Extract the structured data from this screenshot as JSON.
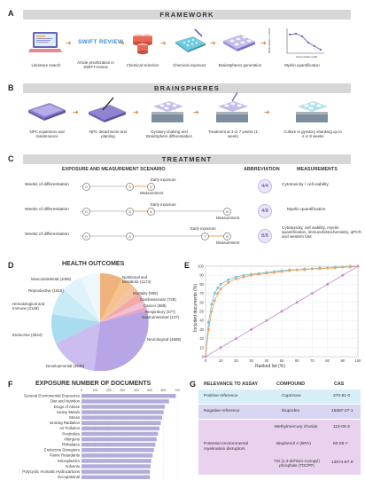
{
  "colors": {
    "purple": "#9b8fd6",
    "orange": "#f0a35e",
    "cyan": "#6fc9e0",
    "grey_bar": "#d7d7d7"
  },
  "panelA": {
    "letter": "A",
    "title": "FRAMEWORK",
    "swift_logo": "SWIFT REVIEW",
    "steps": [
      "Literature search",
      "Article prioritization in SWIFT-review",
      "Chemical selection",
      "Chemical exposure",
      "BrainSpheres generation",
      "Myelin quantification"
    ],
    "mini_chart": {
      "ylabel": "Myelin relative to control",
      "xlabel": "Concentration (µM)"
    }
  },
  "panelB": {
    "letter": "B",
    "title": "BRAINSPHERES",
    "steps": [
      "NPC expansion and maintenance",
      "NPC detachment and planting",
      "Gyratory shaking and BrainSphere differentiation",
      "Treatment at 3 or 7 weeks (1 week)",
      "Culture in gyratory shanking up to 4 or 8 weeks"
    ]
  },
  "panelC": {
    "letter": "C",
    "title": "TREATMENT",
    "headers": {
      "scenario": "EXPOSURE AND MEASUREMENT SCENARIO",
      "abbreviation": "ABBREVIATION",
      "measurements": "MEASUREMENTS"
    },
    "rows": [
      {
        "label": "Weeks of differentiation",
        "points": [
          "0",
          "3",
          "4"
        ],
        "early": "Early exposure",
        "measure": "Measurement",
        "abbr": "4/4",
        "meas": "Cytotoxicity / cell viability"
      },
      {
        "label": "Weeks of differentiation",
        "points": [
          "0",
          "3",
          "4",
          "8"
        ],
        "early": "Early exposure",
        "measure": "Measurement",
        "abbr": "4/8",
        "meas": "Myelin quantification"
      },
      {
        "label": "Weeks of differentiation",
        "points": [
          "0",
          "3",
          "7",
          "8"
        ],
        "early": "Early exposure",
        "measure": "Measurement",
        "abbr": "8/8",
        "meas": "Cytotoxicity, cell viability, myelin quantification, immunohistochemistry, qPCR and western blot"
      }
    ]
  },
  "panelD": {
    "letter": "D",
    "title": "HEALTH OUTCOMES",
    "labels": [
      "Musculoskeletal (1069)",
      "Reproductive (1615)",
      "Hematological and Immune (2149)",
      "Endocrine (2844)",
      "Developmental (3539)",
      "Nutritional and Metabolic (1174)",
      "Mortality (808)",
      "Cardiovascular (728)",
      "Cancer (688)",
      "Respiratory (377)",
      "Gastrointestinal (137)",
      "Neurological (4659)"
    ]
  },
  "chart_data": {
    "type": "line",
    "panel_letter": "E",
    "xlabel": "Ranked list (%)",
    "ylabel": "Included documents (%)",
    "xlim": [
      0,
      100
    ],
    "ylim": [
      0,
      100
    ],
    "xticks": [
      0,
      10,
      20,
      30,
      40,
      50,
      60,
      70,
      80,
      90,
      100
    ],
    "yticks": [
      0,
      10,
      20,
      30,
      40,
      50,
      60,
      70,
      80,
      90,
      100
    ],
    "series": [
      {
        "color": "#6fc9e0",
        "x": [
          0,
          2,
          4,
          6,
          8,
          10,
          15,
          20,
          25,
          30,
          35,
          40,
          45,
          50,
          55,
          60,
          65,
          70,
          75,
          80,
          85,
          90,
          95,
          100
        ],
        "y": [
          0,
          38,
          58,
          70,
          76,
          80,
          85,
          88,
          90,
          91,
          92,
          93,
          94,
          95,
          96,
          96,
          97,
          97,
          98,
          98,
          99,
          99,
          100,
          100
        ]
      },
      {
        "color": "#f0a35e",
        "x": [
          0,
          2,
          4,
          6,
          8,
          10,
          15,
          20,
          25,
          30,
          35,
          40,
          45,
          50,
          55,
          60,
          65,
          70,
          75,
          80,
          85,
          90,
          95,
          100
        ],
        "y": [
          0,
          30,
          50,
          62,
          70,
          75,
          82,
          86,
          88,
          90,
          91,
          92,
          93,
          94,
          95,
          96,
          96,
          97,
          97,
          98,
          98,
          99,
          99,
          100
        ]
      },
      {
        "color": "#c98fd6",
        "x": [
          0,
          10,
          20,
          30,
          40,
          50,
          60,
          70,
          80,
          90,
          100
        ],
        "y": [
          0,
          10,
          20,
          30,
          40,
          50,
          60,
          70,
          80,
          90,
          100
        ]
      }
    ]
  },
  "panelF": {
    "letter": "F",
    "title": "EXPOSURE NUMBER OF DOCUMENTS",
    "axis": [
      "0",
      "100",
      "200",
      "300",
      "400",
      "500",
      "600",
      "700"
    ],
    "categories": [
      "General Enviromental Exposures",
      "Diet and Nutrition",
      "Drugs of Abuse",
      "Heavy Metals",
      "Stress",
      "Ionizing Radiation",
      "Air Pollution",
      "Pesticides",
      "Allergens",
      "Phthalates",
      "Endocrine Disruptors",
      "Flame Retardants",
      "Microplastics",
      "Solvents",
      "Polycyclic Aromatic Hydrocarbons",
      "Occupational"
    ],
    "values": [
      690,
      640,
      610,
      600,
      590,
      580,
      570,
      560,
      550,
      540,
      530,
      520,
      510,
      505,
      500,
      500
    ]
  },
  "panelG": {
    "letter": "G",
    "headers": {
      "relevance": "RELEVANCE TO ASSAY",
      "compound": "COMPOUND",
      "cas": "CAS"
    },
    "rows": [
      {
        "relevance": "Positive reference",
        "compound": "Cuprizone",
        "cas": "370-81-0",
        "bg": "#d5eef7"
      },
      {
        "relevance": "Negative reference",
        "compound": "Ibuprofen",
        "cas": "15687-27-1",
        "bg": "#d9d6f1"
      }
    ],
    "group": {
      "relevance": "Potential environmental myelination disruptors",
      "bg": "#e9d2ee",
      "items": [
        {
          "compound": "Methylmercury choride",
          "cas": "115-09-3"
        },
        {
          "compound": "Bisphenol A (BPA)",
          "cas": "80-05-7"
        },
        {
          "compound": "Tris (1,3-dichloro-2-propyl) phosphate (TDCPP)",
          "cas": "13674-87-8"
        }
      ]
    }
  }
}
